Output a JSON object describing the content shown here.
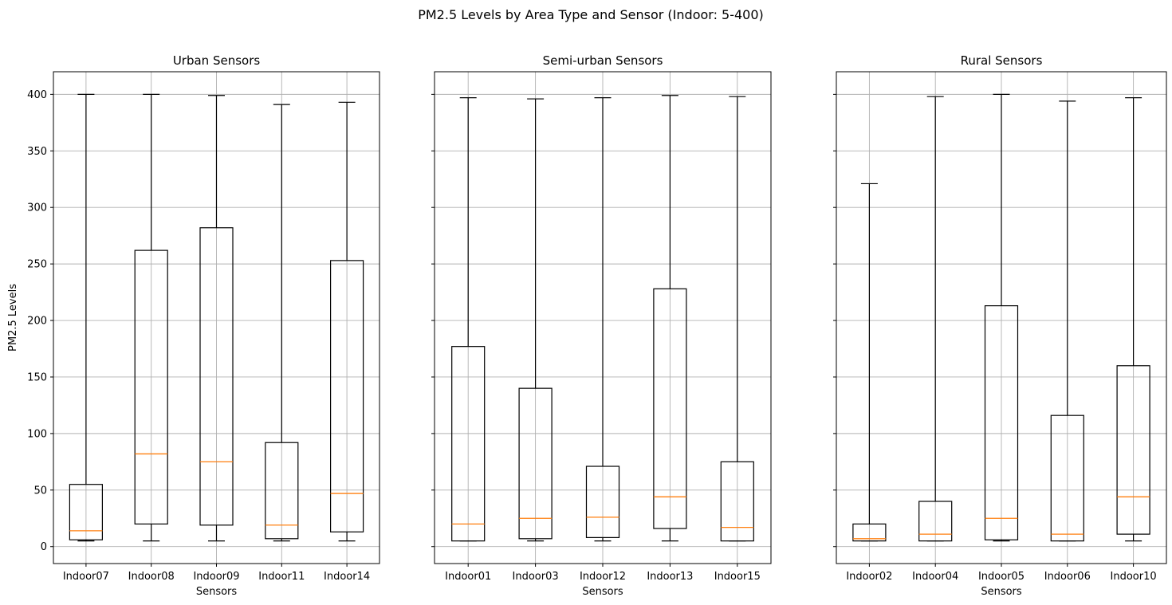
{
  "figure": {
    "suptitle": "PM2.5 Levels by Area Type and Sensor (Indoor: 5-400)"
  },
  "chart_data": [
    {
      "type": "boxplot",
      "title": "Urban Sensors",
      "xlabel": "Sensors",
      "ylabel": "PM2.5 Levels",
      "ylim": [
        -15,
        420
      ],
      "yticks": [
        0,
        50,
        100,
        150,
        200,
        250,
        300,
        350,
        400
      ],
      "grid": true,
      "categories": [
        "Indoor07",
        "Indoor08",
        "Indoor09",
        "Indoor11",
        "Indoor14"
      ],
      "boxes": [
        {
          "whislo": 5,
          "q1": 6,
          "med": 14,
          "q3": 55,
          "whishi": 400
        },
        {
          "whislo": 5,
          "q1": 20,
          "med": 82,
          "q3": 262,
          "whishi": 400
        },
        {
          "whislo": 5,
          "q1": 19,
          "med": 75,
          "q3": 282,
          "whishi": 399
        },
        {
          "whislo": 5,
          "q1": 7,
          "med": 19,
          "q3": 92,
          "whishi": 391
        },
        {
          "whislo": 5,
          "q1": 13,
          "med": 47,
          "q3": 253,
          "whishi": 393
        }
      ]
    },
    {
      "type": "boxplot",
      "title": "Semi-urban Sensors",
      "xlabel": "Sensors",
      "ylabel": "",
      "ylim": [
        -15,
        420
      ],
      "yticks": [
        0,
        50,
        100,
        150,
        200,
        250,
        300,
        350,
        400
      ],
      "grid": true,
      "categories": [
        "Indoor01",
        "Indoor03",
        "Indoor12",
        "Indoor13",
        "Indoor15"
      ],
      "boxes": [
        {
          "whislo": 5,
          "q1": 5,
          "med": 20,
          "q3": 177,
          "whishi": 397
        },
        {
          "whislo": 5,
          "q1": 7,
          "med": 25,
          "q3": 140,
          "whishi": 396
        },
        {
          "whislo": 5,
          "q1": 8,
          "med": 26,
          "q3": 71,
          "whishi": 397
        },
        {
          "whislo": 5,
          "q1": 16,
          "med": 44,
          "q3": 228,
          "whishi": 399
        },
        {
          "whislo": 5,
          "q1": 5,
          "med": 17,
          "q3": 75,
          "whishi": 398
        }
      ]
    },
    {
      "type": "boxplot",
      "title": "Rural Sensors",
      "xlabel": "Sensors",
      "ylabel": "",
      "ylim": [
        -15,
        420
      ],
      "yticks": [
        0,
        50,
        100,
        150,
        200,
        250,
        300,
        350,
        400
      ],
      "grid": true,
      "categories": [
        "Indoor02",
        "Indoor04",
        "Indoor05",
        "Indoor06",
        "Indoor10"
      ],
      "boxes": [
        {
          "whislo": 5,
          "q1": 5,
          "med": 7,
          "q3": 20,
          "whishi": 321
        },
        {
          "whislo": 5,
          "q1": 5,
          "med": 11,
          "q3": 40,
          "whishi": 398
        },
        {
          "whislo": 5,
          "q1": 6,
          "med": 25,
          "q3": 213,
          "whishi": 400
        },
        {
          "whislo": 5,
          "q1": 5,
          "med": 11,
          "q3": 116,
          "whishi": 394
        },
        {
          "whislo": 5,
          "q1": 11,
          "med": 44,
          "q3": 160,
          "whishi": 397
        }
      ]
    }
  ],
  "colors": {
    "box": "#000000",
    "median": "#ff7f0e",
    "grid": "#b0b0b0",
    "background": "#ffffff"
  }
}
